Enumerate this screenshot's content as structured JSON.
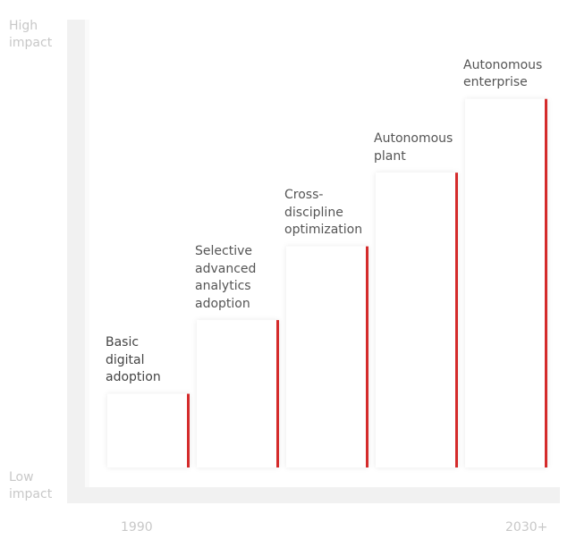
{
  "chart_data": {
    "type": "bar",
    "categories": [
      "Basic\ndigital\nadoption",
      "Selective\nadvanced\nanalytics\nadoption",
      "Cross-\ndiscipline\noptimization",
      "Autonomous\nplant",
      "Autonomous\nenterprise"
    ],
    "values": [
      1,
      2,
      3,
      4,
      5
    ],
    "ylim": [
      0,
      6.1
    ],
    "y_axis": {
      "high": "High\nimpact",
      "low": "Low\nimpact"
    },
    "x_axis": {
      "start": "1990",
      "end": "2030+"
    },
    "accent_color": "#d42b2b",
    "axis_color": "#f1f1f1",
    "grid": false,
    "legend": "none"
  }
}
